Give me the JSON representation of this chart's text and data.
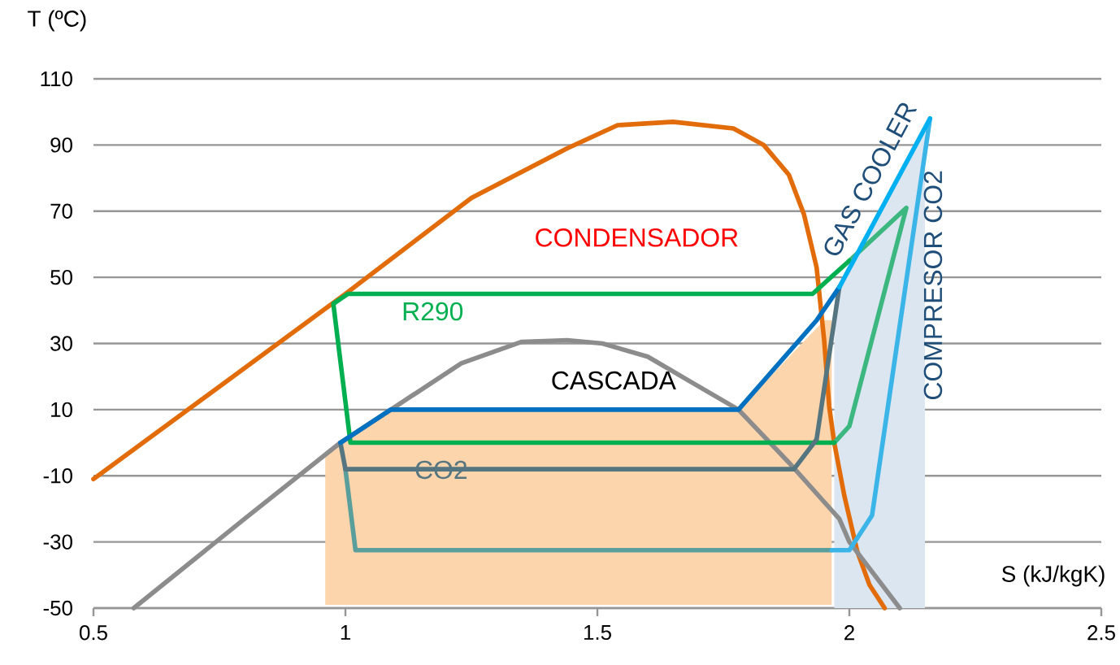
{
  "chart_data": {
    "type": "line",
    "xlabel": "S (kJ/kgK)",
    "ylabel": "T (ºC)",
    "xlim": [
      0.5,
      2.5
    ],
    "ylim": [
      -50,
      110
    ],
    "xticks": [
      0.5,
      1,
      1.5,
      2,
      2.5
    ],
    "yticks": [
      -50,
      -30,
      -10,
      10,
      30,
      50,
      70,
      90,
      110
    ],
    "grid": "y",
    "marker": "none",
    "line_style": "solid",
    "series": [
      {
        "type": "area",
        "color": "#fcd5ac",
        "x": [
          0.96,
          0.96,
          0.99,
          1.09,
          1.78,
          1.95,
          1.965,
          1.965
        ],
        "values": [
          -49,
          -3,
          0,
          10,
          10,
          37,
          37,
          -49
        ]
      },
      {
        "type": "area",
        "color": "#dce6f1",
        "x": [
          1.97,
          1.97,
          1.98,
          2.0,
          2.15,
          2.15
        ],
        "values": [
          -50,
          30,
          47,
          53,
          95,
          -50
        ]
      },
      {
        "color": "#e36c0a",
        "x": [
          0.5,
          0.75,
          1.0,
          1.25,
          1.44,
          1.54,
          1.65,
          1.77,
          1.83,
          1.88,
          1.91,
          1.935,
          1.95,
          1.96,
          1.97,
          1.99,
          2.016,
          2.04,
          2.07
        ],
        "values": [
          -11,
          17,
          45,
          74,
          89,
          96,
          97,
          95,
          90,
          81,
          69,
          53,
          31,
          11,
          0,
          -16,
          -33,
          -43,
          -50
        ]
      },
      {
        "color": "#8c8c8c",
        "x": [
          0.58,
          0.8,
          0.99,
          1.1,
          1.23,
          1.35,
          1.44,
          1.51,
          1.6,
          1.69,
          1.78,
          1.88,
          1.98,
          2.0,
          2.1
        ],
        "values": [
          -50,
          -23,
          0,
          11,
          24,
          30.5,
          31,
          30,
          26,
          18,
          10,
          -6,
          -23,
          -30,
          -50
        ]
      },
      {
        "color": "#3cb77f",
        "x": [
          2.0,
          2.113,
          2.0,
          1.97
        ],
        "values": [
          55,
          71,
          5,
          0
        ]
      },
      {
        "color": "#00b050",
        "name": "R290",
        "x": [
          1.97,
          1.01,
          0.976,
          1.005,
          1.927,
          2.0
        ],
        "values": [
          0,
          0,
          42,
          45,
          45,
          55
        ]
      },
      {
        "color": "#5a9f9c",
        "x": [
          1.0,
          1.02,
          1.965
        ],
        "values": [
          -8,
          -32.5,
          -32.5
        ]
      },
      {
        "color": "#557580",
        "name": "CO2",
        "x": [
          1.98,
          1.935,
          1.89,
          1.0,
          0.99
        ],
        "values": [
          47,
          1,
          -8,
          -8,
          0
        ]
      },
      {
        "color": "#0070c0",
        "x": [
          0.99,
          1.09,
          1.78,
          1.935,
          1.98
        ],
        "values": [
          0,
          10,
          10,
          37,
          47
        ]
      },
      {
        "color": "#3bb4e8",
        "x": [
          1.965,
          2.0,
          2.045,
          2.16
        ],
        "values": [
          -32.5,
          -32.5,
          -22,
          98
        ]
      },
      {
        "color": "#00b0f0",
        "x": [
          2.16,
          1.98
        ],
        "values": [
          98,
          47
        ]
      }
    ],
    "annotations": [
      "CONDENSADOR",
      "CASCADA",
      "GAS COOLER",
      "COMPRESOR CO2"
    ]
  }
}
